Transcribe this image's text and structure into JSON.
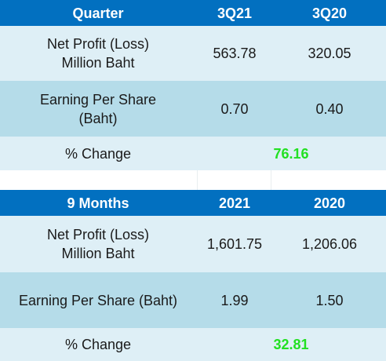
{
  "quarter_table": {
    "header": [
      "Quarter",
      "3Q21",
      "3Q20"
    ],
    "rows": [
      {
        "label_line1": "Net Profit (Loss)",
        "label_line2": "Million Baht",
        "v1": "563.78",
        "v2": "320.05"
      },
      {
        "label_line1": "Earning Per Share",
        "label_line2": "(Baht)",
        "v1": "0.70",
        "v2": "0.40"
      }
    ],
    "change_label": "% Change",
    "change_value": "76.16"
  },
  "nine_month_table": {
    "header": [
      "9 Months",
      "2021",
      "2020"
    ],
    "rows": [
      {
        "label_line1": "Net Profit (Loss)",
        "label_line2": "Million Baht",
        "v1": "1,601.75",
        "v2": "1,206.06"
      },
      {
        "label_line1": "Earning Per Share (Baht)",
        "v1": "1.99",
        "v2": "1.50"
      }
    ],
    "change_label": "% Change",
    "change_value": "32.81"
  },
  "colors": {
    "header_bg": "#0270c0",
    "row_light": "#deeff6",
    "row_dark": "#b5dce9",
    "growth_text": "#22e022"
  }
}
